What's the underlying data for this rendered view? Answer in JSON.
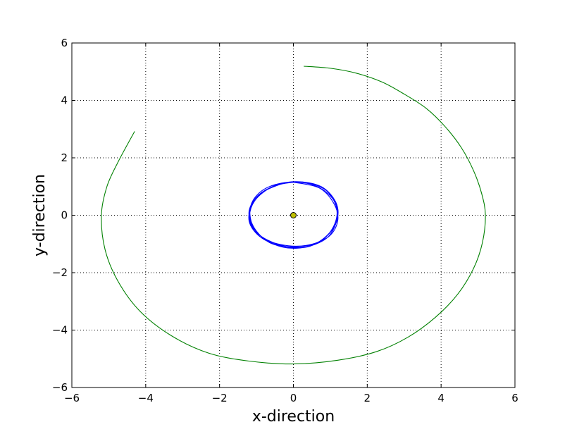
{
  "chart_data": {
    "type": "line",
    "title": "",
    "xlabel": "x-direction",
    "ylabel": "y-direction",
    "xlim": [
      -6,
      6
    ],
    "ylim": [
      -6,
      6
    ],
    "xticks": [
      -6,
      -4,
      -2,
      0,
      2,
      4,
      6
    ],
    "yticks": [
      -6,
      -4,
      -2,
      0,
      2,
      4,
      6
    ],
    "xtick_labels": [
      "−6",
      "−4",
      "−2",
      "0",
      "2",
      "4",
      "6"
    ],
    "ytick_labels": [
      "−6",
      "−4",
      "−2",
      "0",
      "2",
      "4",
      "6"
    ],
    "grid": true,
    "series": [
      {
        "color": "#008000",
        "points": [
          [
            0.28,
            5.19
          ],
          [
            1.0,
            5.12
          ],
          [
            1.7,
            4.95
          ],
          [
            2.4,
            4.64
          ],
          [
            3.0,
            4.22
          ],
          [
            3.6,
            3.72
          ],
          [
            4.1,
            3.1
          ],
          [
            4.55,
            2.35
          ],
          [
            4.88,
            1.55
          ],
          [
            5.1,
            0.75
          ],
          [
            5.2,
            0.0
          ],
          [
            5.12,
            -0.95
          ],
          [
            4.88,
            -1.85
          ],
          [
            4.45,
            -2.75
          ],
          [
            3.85,
            -3.55
          ],
          [
            3.1,
            -4.25
          ],
          [
            2.25,
            -4.75
          ],
          [
            1.2,
            -5.05
          ],
          [
            0.0,
            -5.18
          ],
          [
            -1.2,
            -5.08
          ],
          [
            -2.3,
            -4.8
          ],
          [
            -3.3,
            -4.2
          ],
          [
            -4.15,
            -3.35
          ],
          [
            -4.75,
            -2.3
          ],
          [
            -5.1,
            -1.2
          ],
          [
            -5.2,
            0.0
          ],
          [
            -5.05,
            1.0
          ],
          [
            -4.75,
            1.85
          ],
          [
            -4.3,
            2.92
          ]
        ]
      },
      {
        "color": "#0000ff",
        "points": [
          [
            0.0,
            1.15
          ],
          [
            0.7,
            0.95
          ],
          [
            1.1,
            0.4
          ],
          [
            1.2,
            -0.2
          ],
          [
            0.95,
            -0.75
          ],
          [
            0.35,
            -1.05
          ],
          [
            -0.35,
            -1.02
          ],
          [
            -0.95,
            -0.7
          ],
          [
            -1.18,
            -0.1
          ],
          [
            -1.05,
            0.5
          ],
          [
            -0.6,
            0.98
          ],
          [
            0.05,
            1.17
          ],
          [
            0.75,
            1.0
          ],
          [
            1.15,
            0.45
          ],
          [
            1.18,
            -0.15
          ],
          [
            0.9,
            -0.8
          ],
          [
            0.25,
            -1.12
          ],
          [
            -0.45,
            -1.0
          ],
          [
            -1.05,
            -0.55
          ],
          [
            -1.2,
            0.05
          ],
          [
            -0.95,
            0.65
          ],
          [
            -0.4,
            1.08
          ],
          [
            0.3,
            1.15
          ],
          [
            0.9,
            0.85
          ],
          [
            1.2,
            0.25
          ],
          [
            1.1,
            -0.4
          ],
          [
            0.65,
            -0.95
          ],
          [
            0.0,
            -1.1
          ],
          [
            -0.65,
            -0.95
          ],
          [
            -1.1,
            -0.35
          ],
          [
            -1.15,
            0.35
          ],
          [
            -0.8,
            0.9
          ],
          [
            -0.15,
            1.15
          ],
          [
            0.55,
            1.05
          ],
          [
            1.05,
            0.6
          ],
          [
            1.2,
            0.0
          ],
          [
            1.0,
            -0.6
          ],
          [
            0.45,
            -1.08
          ],
          [
            -0.2,
            -1.1
          ],
          [
            -0.85,
            -0.8
          ],
          [
            -1.2,
            -0.2
          ],
          [
            -1.05,
            0.55
          ],
          [
            -0.55,
            1.0
          ],
          [
            0.15,
            1.15
          ],
          [
            0.8,
            0.95
          ],
          [
            1.15,
            0.35
          ],
          [
            1.12,
            -0.3
          ],
          [
            0.75,
            -0.9
          ],
          [
            0.1,
            -1.15
          ],
          [
            -0.55,
            -1.0
          ],
          [
            -1.05,
            -0.5
          ],
          [
            -1.2,
            0.15
          ],
          [
            -0.9,
            0.75
          ],
          [
            -0.3,
            1.1
          ],
          [
            0.0,
            1.15
          ]
        ]
      }
    ],
    "center_marker": {
      "x": 0,
      "y": 0,
      "fill": "#bfbf00",
      "stroke": "#000000"
    }
  }
}
